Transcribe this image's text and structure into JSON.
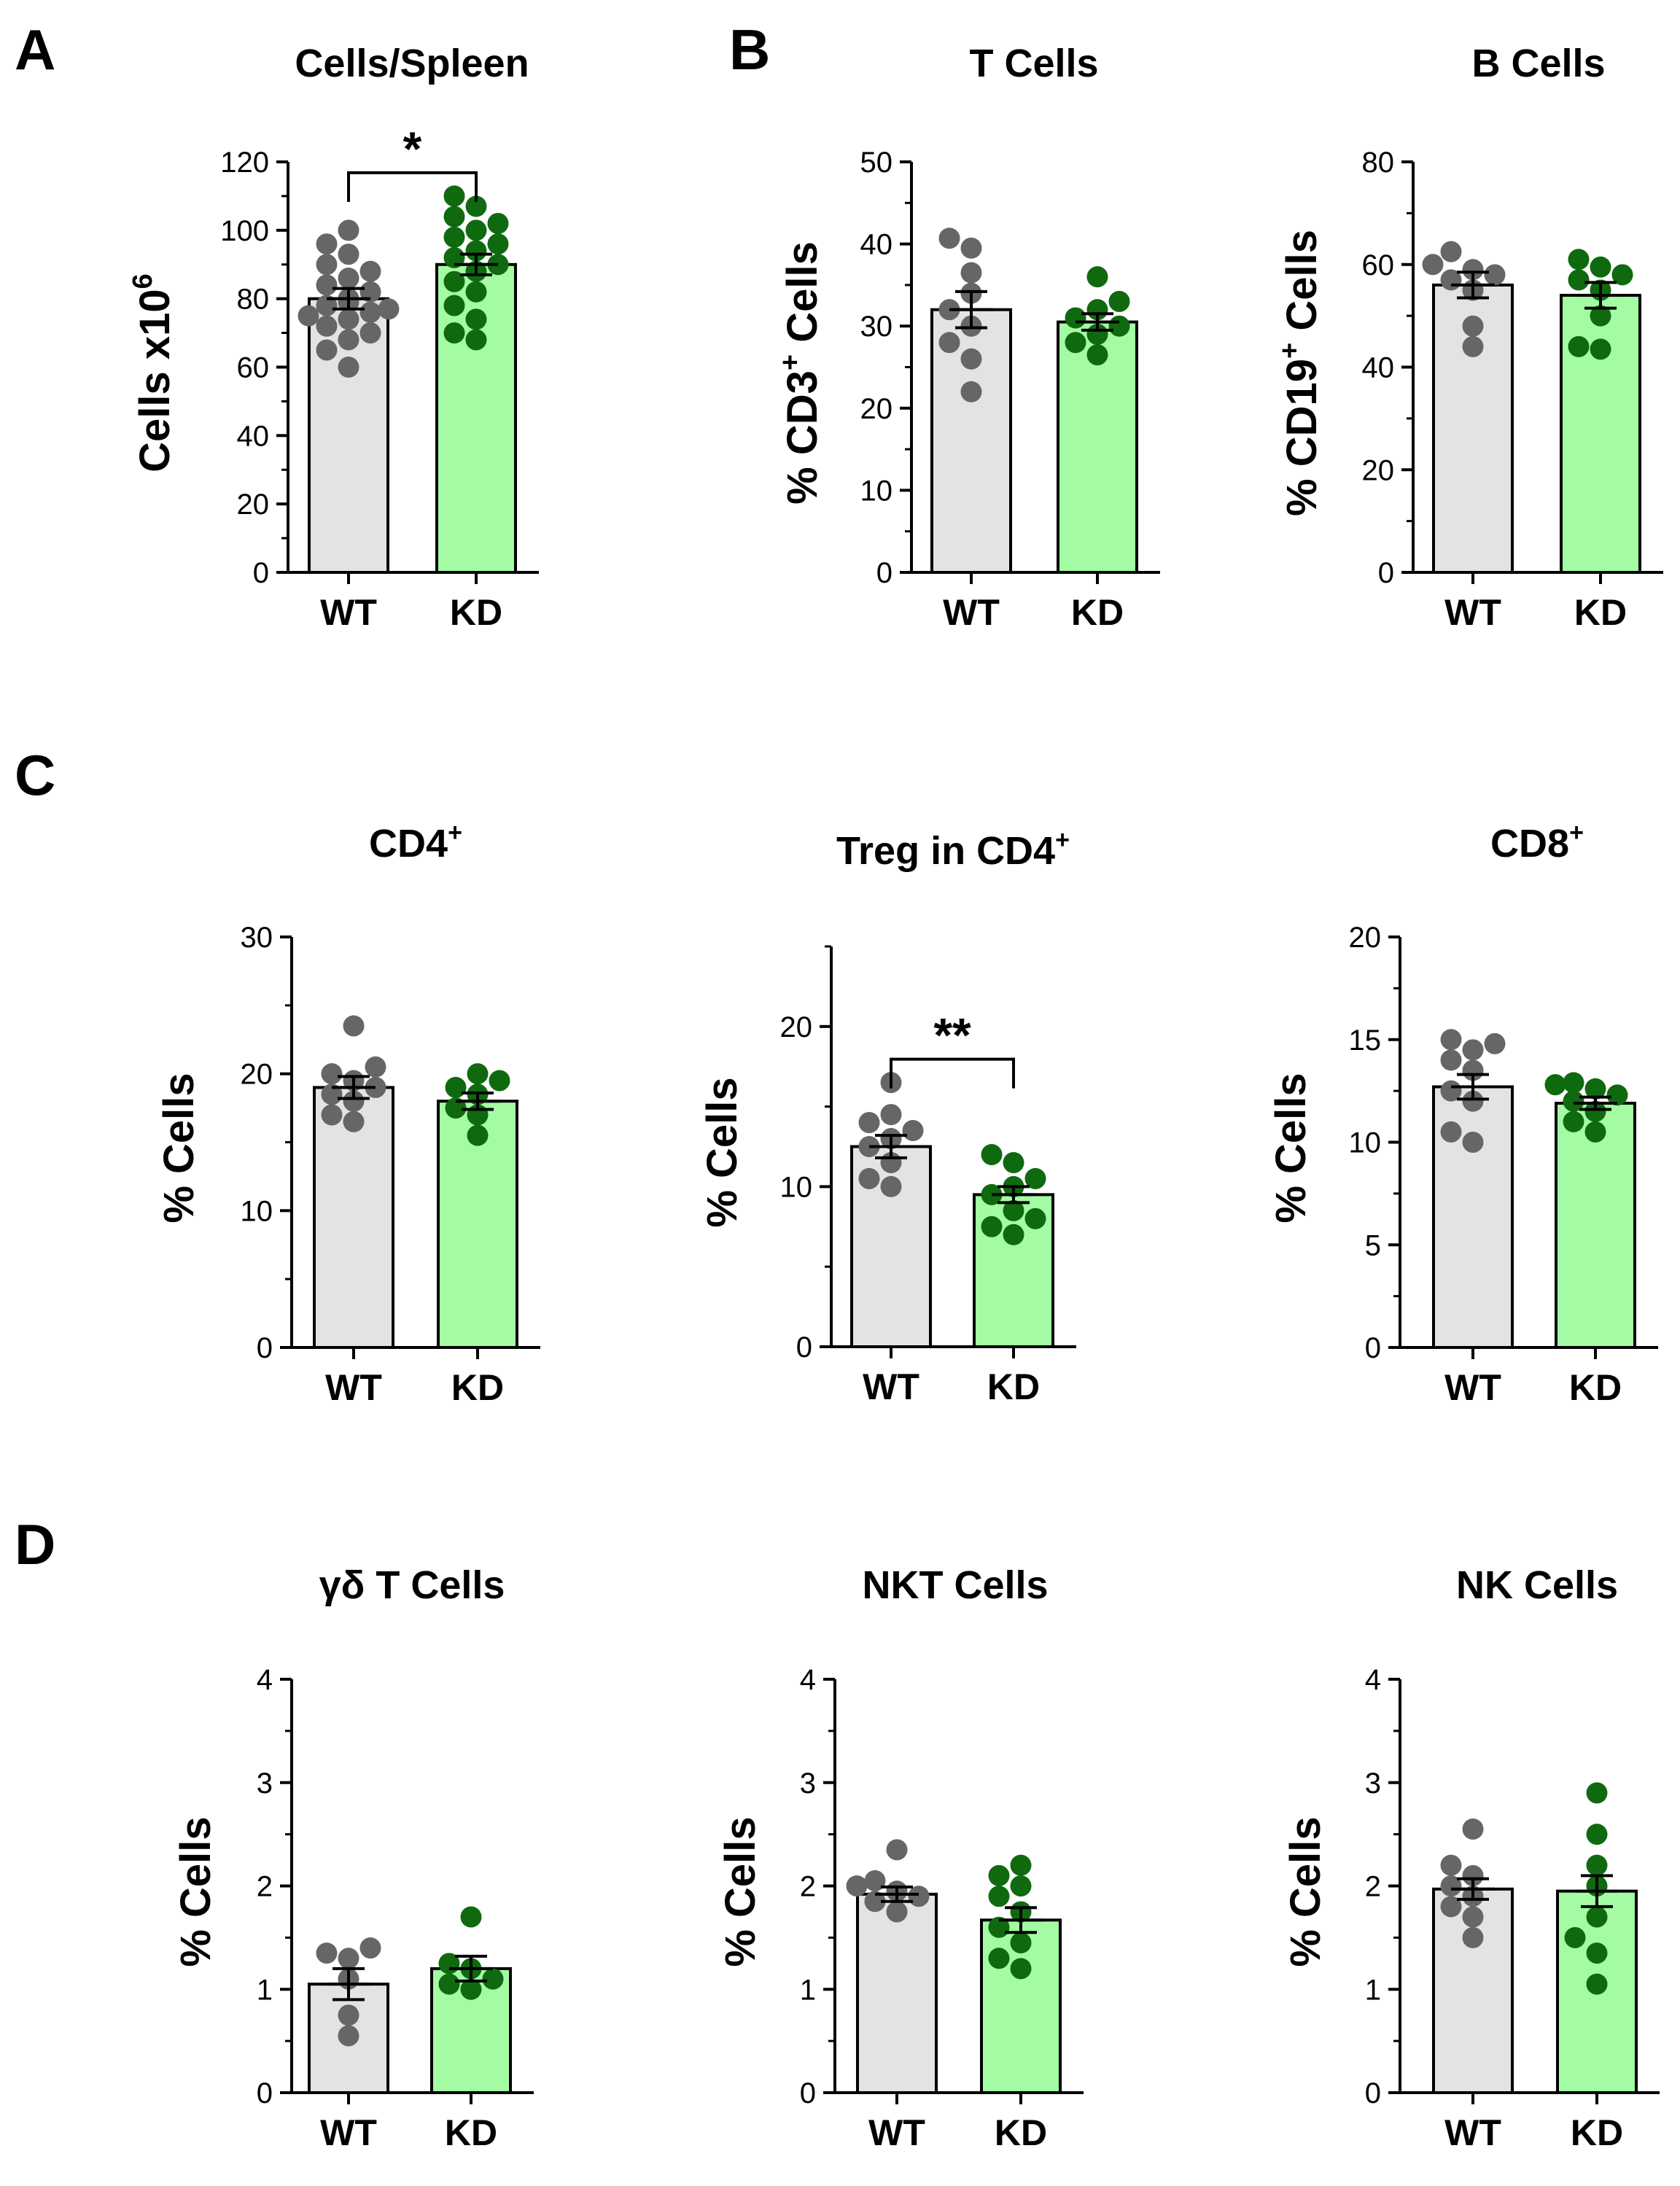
{
  "figure": {
    "panel_letters": [
      "A",
      "B",
      "C",
      "D"
    ],
    "group_colors": {
      "WT": {
        "bar": "#e3e3e3",
        "dot": "#666666"
      },
      "KD": {
        "bar": "#a3fca3",
        "dot": "#0f6a0f"
      }
    }
  },
  "chart_data": [
    {
      "id": "cells_spleen",
      "type": "bar",
      "title": "Cells/Spleen",
      "ylabel": "Cells x10",
      "ylabel_sup": "6",
      "ylim": [
        0,
        120
      ],
      "yticks": [
        0,
        20,
        40,
        60,
        80,
        100,
        120
      ],
      "categories": [
        "WT",
        "KD"
      ],
      "means": [
        80,
        90
      ],
      "sem": [
        3,
        3
      ],
      "points": [
        [
          60,
          65,
          68,
          70,
          72,
          74,
          75,
          76,
          77,
          78,
          79,
          80,
          82,
          84,
          86,
          88,
          90,
          93,
          96,
          100
        ],
        [
          68,
          70,
          74,
          78,
          82,
          85,
          88,
          90,
          92,
          94,
          96,
          98,
          100,
          102,
          104,
          107,
          110
        ]
      ],
      "significance": "*"
    },
    {
      "id": "t_cells",
      "type": "bar",
      "title": "T Cells",
      "ylabel": "% CD3",
      "ylabel_sup": "+",
      "ylabel_suffix": " Cells",
      "ylim": [
        0,
        50
      ],
      "yticks": [
        0,
        10,
        20,
        30,
        40,
        50
      ],
      "categories": [
        "WT",
        "KD"
      ],
      "means": [
        32,
        30.5
      ],
      "sem": [
        2.2,
        1
      ],
      "points": [
        [
          22,
          26,
          28,
          30,
          32,
          34,
          36.5,
          39.5,
          40.7
        ],
        [
          26.5,
          28,
          29,
          30,
          31,
          32,
          33,
          36
        ]
      ],
      "significance": ""
    },
    {
      "id": "b_cells",
      "type": "bar",
      "title": "B Cells",
      "ylabel": "% CD19",
      "ylabel_sup": "+",
      "ylabel_suffix": " Cells",
      "ylim": [
        0,
        80
      ],
      "yticks": [
        0,
        20,
        40,
        60,
        80
      ],
      "categories": [
        "WT",
        "KD"
      ],
      "means": [
        56,
        54
      ],
      "sem": [
        2.5,
        2.5
      ],
      "points": [
        [
          44,
          48,
          55,
          57,
          58,
          59,
          60,
          62.5
        ],
        [
          43.5,
          44,
          50,
          55,
          57,
          58,
          59.5,
          61
        ]
      ],
      "significance": ""
    },
    {
      "id": "cd4",
      "type": "bar",
      "title": "CD4",
      "title_sup": "+",
      "ylabel": "% Cells",
      "ylim": [
        0,
        30
      ],
      "yticks": [
        0,
        10,
        20,
        30
      ],
      "categories": [
        "WT",
        "KD"
      ],
      "means": [
        19,
        18
      ],
      "sem": [
        0.8,
        0.6
      ],
      "points": [
        [
          16.5,
          17,
          18,
          18.5,
          19,
          19.5,
          20,
          20.5,
          23.5
        ],
        [
          15.5,
          17,
          17.5,
          18.5,
          19,
          19.5,
          20
        ]
      ],
      "significance": ""
    },
    {
      "id": "treg",
      "type": "bar",
      "title": "Treg in CD4",
      "title_sup": "+",
      "ylabel": "% Cells",
      "ylim": [
        0,
        25
      ],
      "yticks": [
        0,
        10,
        20
      ],
      "categories": [
        "WT",
        "KD"
      ],
      "means": [
        12.5,
        9.5
      ],
      "sem": [
        0.7,
        0.5
      ],
      "points": [
        [
          10,
          10.5,
          11.5,
          12.5,
          13,
          13.5,
          14,
          14.5,
          16.5
        ],
        [
          7,
          7.5,
          8,
          8.5,
          9.5,
          10,
          10.5,
          11.5,
          12
        ]
      ],
      "significance": "**"
    },
    {
      "id": "cd8",
      "type": "bar",
      "title": "CD8",
      "title_sup": "+",
      "ylabel": "% Cells",
      "ylim": [
        0,
        20
      ],
      "yticks": [
        0,
        5,
        10,
        15,
        20
      ],
      "categories": [
        "WT",
        "KD"
      ],
      "means": [
        12.7,
        11.9
      ],
      "sem": [
        0.6,
        0.3
      ],
      "points": [
        [
          10,
          10.5,
          12,
          12.5,
          13.5,
          14,
          14.5,
          14.8,
          15
        ],
        [
          10.5,
          11,
          11.5,
          12,
          12.3,
          12.6,
          12.8,
          12.9
        ]
      ],
      "significance": ""
    },
    {
      "id": "gd_t",
      "type": "bar",
      "title": "γδ T Cells",
      "ylabel": "% Cells",
      "ylim": [
        0,
        4
      ],
      "yticks": [
        0,
        1,
        2,
        3,
        4
      ],
      "categories": [
        "WT",
        "KD"
      ],
      "means": [
        1.05,
        1.2
      ],
      "sem": [
        0.15,
        0.12
      ],
      "points": [
        [
          0.55,
          0.75,
          1.1,
          1.3,
          1.35,
          1.4
        ],
        [
          1.0,
          1.05,
          1.1,
          1.2,
          1.25,
          1.7
        ]
      ],
      "significance": ""
    },
    {
      "id": "nkt",
      "type": "bar",
      "title": "NKT Cells",
      "ylabel": "% Cells",
      "ylim": [
        0,
        4
      ],
      "yticks": [
        0,
        1,
        2,
        3,
        4
      ],
      "categories": [
        "WT",
        "KD"
      ],
      "means": [
        1.92,
        1.67
      ],
      "sem": [
        0.07,
        0.12
      ],
      "points": [
        [
          1.75,
          1.85,
          1.9,
          1.95,
          2.0,
          2.05,
          2.35
        ],
        [
          1.2,
          1.3,
          1.45,
          1.6,
          1.75,
          1.9,
          2.0,
          2.1,
          2.2
        ]
      ],
      "significance": ""
    },
    {
      "id": "nk",
      "type": "bar",
      "title": "NK Cells",
      "ylabel": "% Cells",
      "ylim": [
        0,
        4
      ],
      "yticks": [
        0,
        1,
        2,
        3,
        4
      ],
      "categories": [
        "WT",
        "KD"
      ],
      "means": [
        1.97,
        1.95
      ],
      "sem": [
        0.1,
        0.15
      ],
      "points": [
        [
          1.5,
          1.7,
          1.8,
          1.9,
          2.0,
          2.1,
          2.2,
          2.55
        ],
        [
          1.05,
          1.35,
          1.5,
          1.7,
          2.0,
          2.2,
          2.5,
          2.9
        ]
      ],
      "significance": ""
    }
  ]
}
